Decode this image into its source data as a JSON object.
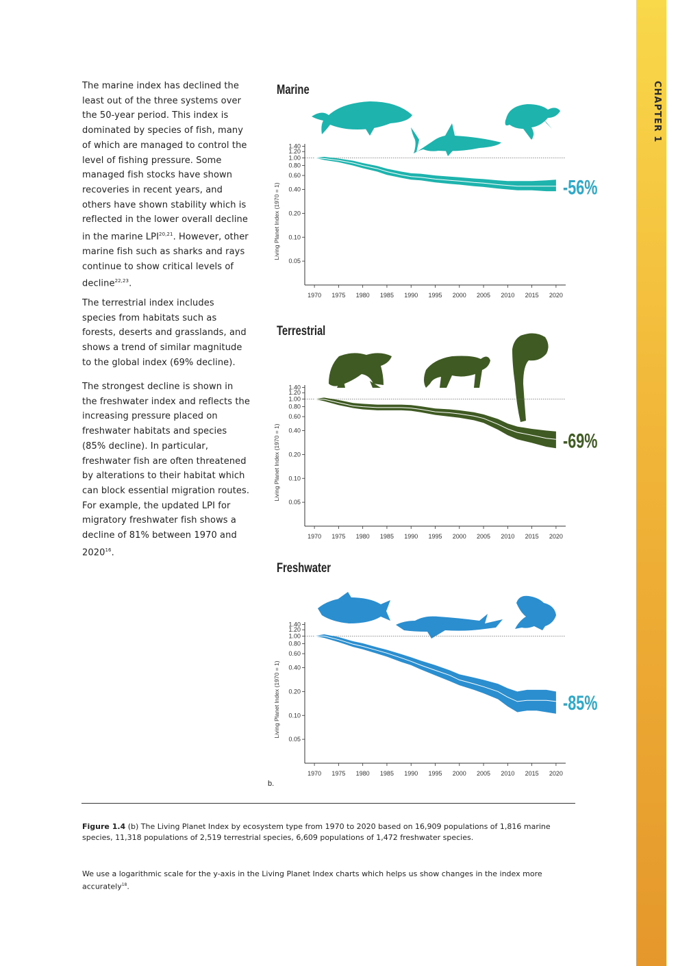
{
  "sidebar": {
    "chapter_label": "CHAPTER 1",
    "accent": "#f2b93a"
  },
  "text": {
    "marine_paragraph": {
      "part1": "The marine index has declined the least out of the three systems over the 50-year period. This index is dominated by species of fish, many of which are managed to control the level of fishing pressure. Some managed fish stocks have shown recoveries in recent years, and others have shown stability which is reflected in the lower overall decline in the marine LPI",
      "ref1": "20,21",
      "part2": ". However, other marine fish such as sharks and rays continue to show critical levels of decline",
      "ref2": "22,23",
      "part3": "."
    },
    "terrestrial_paragraph": "The terrestrial index includes species from habitats such as forests, deserts and grasslands, and shows a trend of similar magnitude to the global index (69% decline).",
    "freshwater_paragraph": {
      "part1": "The strongest decline is shown in the freshwater index and reflects the increasing pressure placed on freshwater habitats and species (85% decline). In particular, freshwater fish are often threatened by alterations to their habitat which can block essential migration routes. For example, the updated LPI for migratory freshwater fish shows a decline of 81% between 1970 and 2020",
      "ref": "16",
      "part2": "."
    }
  },
  "figure_label": "b.",
  "caption": {
    "label": "Figure 1.4",
    "text": " (b) The Living Planet Index by ecosystem type from 1970 to 2020 based on 16,909 populations of 1,816 marine species, 11,318 populations of 2,519 terrestrial species, 6,609 populations of 1,472 freshwater species."
  },
  "footnote": {
    "text": "We use a logarithmic scale for the y-axis in the Living Planet Index charts which helps us show changes in the index more accurately",
    "ref": "18",
    "end": "."
  },
  "chart_data": [
    {
      "type": "area",
      "title": "Marine",
      "ylabel": "Living Planet Index (1970 = 1)",
      "xlabel": "",
      "y_scale": "log",
      "ylim": [
        0.025,
        1.5
      ],
      "xlim": [
        1968,
        2022
      ],
      "color": "#1fb3ae",
      "x_ticks": [
        "1970",
        "1975",
        "1980",
        "1985",
        "1990",
        "1995",
        "2000",
        "2005",
        "2010",
        "2015",
        "2020"
      ],
      "y_ticks": [
        "1.40",
        "1.20",
        "1.00",
        "0.80",
        "0.60",
        "0.40",
        "0.20",
        "0.10",
        "0.05"
      ],
      "reference_line": 1.0,
      "change_label": "-56%",
      "animal_icons": [
        "whale-icon",
        "shark-icon",
        "turtle-icon"
      ],
      "series": [
        {
          "x": [
            1970,
            1972,
            1975,
            1978,
            1980,
            1983,
            1985,
            1988,
            1990,
            1992,
            1995,
            1998,
            2000,
            2003,
            2005,
            2008,
            2010,
            2012,
            2015,
            2018,
            2020
          ],
          "y": [
            1.0,
            0.98,
            0.93,
            0.86,
            0.8,
            0.73,
            0.67,
            0.61,
            0.58,
            0.57,
            0.54,
            0.52,
            0.51,
            0.49,
            0.48,
            0.46,
            0.45,
            0.44,
            0.44,
            0.44,
            0.44
          ],
          "lower": [
            1.0,
            0.94,
            0.88,
            0.8,
            0.74,
            0.67,
            0.61,
            0.56,
            0.53,
            0.52,
            0.49,
            0.47,
            0.46,
            0.44,
            0.43,
            0.41,
            0.4,
            0.39,
            0.39,
            0.38,
            0.38
          ],
          "upper": [
            1.0,
            1.03,
            0.98,
            0.92,
            0.86,
            0.79,
            0.73,
            0.67,
            0.64,
            0.63,
            0.6,
            0.58,
            0.57,
            0.55,
            0.54,
            0.52,
            0.51,
            0.51,
            0.51,
            0.52,
            0.53
          ]
        }
      ]
    },
    {
      "type": "area",
      "title": "Terrestrial",
      "ylabel": "Living Planet Index (1970 = 1)",
      "xlabel": "",
      "y_scale": "log",
      "ylim": [
        0.025,
        1.5
      ],
      "xlim": [
        1968,
        2022
      ],
      "color": "#3f5a22",
      "x_ticks": [
        "1970",
        "1975",
        "1980",
        "1985",
        "1990",
        "1995",
        "2000",
        "2005",
        "2010",
        "2015",
        "2020"
      ],
      "y_ticks": [
        "1.40",
        "1.20",
        "1.00",
        "0.80",
        "0.60",
        "0.40",
        "0.20",
        "0.10",
        "0.05"
      ],
      "reference_line": 1.0,
      "change_label": "-69%",
      "animal_icons": [
        "iguana-icon",
        "jaguar-icon",
        "monkey-icon"
      ],
      "series": [
        {
          "x": [
            1970,
            1972,
            1975,
            1978,
            1980,
            1983,
            1985,
            1988,
            1990,
            1992,
            1995,
            1998,
            2000,
            2003,
            2005,
            2008,
            2010,
            2012,
            2015,
            2018,
            2020
          ],
          "y": [
            1.0,
            0.99,
            0.9,
            0.82,
            0.8,
            0.78,
            0.78,
            0.78,
            0.77,
            0.74,
            0.69,
            0.67,
            0.65,
            0.61,
            0.57,
            0.48,
            0.42,
            0.38,
            0.35,
            0.32,
            0.31
          ],
          "lower": [
            1.0,
            0.94,
            0.84,
            0.77,
            0.74,
            0.72,
            0.72,
            0.72,
            0.71,
            0.68,
            0.63,
            0.6,
            0.58,
            0.54,
            0.5,
            0.41,
            0.35,
            0.31,
            0.28,
            0.25,
            0.24
          ],
          "upper": [
            1.0,
            1.04,
            0.97,
            0.89,
            0.87,
            0.85,
            0.85,
            0.85,
            0.84,
            0.81,
            0.76,
            0.74,
            0.72,
            0.68,
            0.64,
            0.56,
            0.49,
            0.45,
            0.42,
            0.4,
            0.39
          ]
        }
      ]
    },
    {
      "type": "area",
      "title": "Freshwater",
      "ylabel": "Living Planet Index (1970 = 1)",
      "xlabel": "",
      "y_scale": "log",
      "ylim": [
        0.025,
        1.5
      ],
      "xlim": [
        1968,
        2022
      ],
      "color": "#2b8ecf",
      "x_ticks": [
        "1970",
        "1975",
        "1980",
        "1985",
        "1990",
        "1995",
        "2000",
        "2005",
        "2010",
        "2015",
        "2020"
      ],
      "y_ticks": [
        "1.40",
        "1.20",
        "1.00",
        "0.80",
        "0.60",
        "0.40",
        "0.20",
        "0.10",
        "0.05"
      ],
      "reference_line": 1.0,
      "change_label": "-85%",
      "animal_icons": [
        "salmon-icon",
        "sturgeon-icon",
        "frog-icon"
      ],
      "series": [
        {
          "x": [
            1970,
            1972,
            1975,
            1978,
            1980,
            1983,
            1985,
            1988,
            1990,
            1992,
            1995,
            1998,
            2000,
            2003,
            2005,
            2008,
            2010,
            2012,
            2014,
            2016,
            2018,
            2020
          ],
          "y": [
            1.0,
            1.0,
            0.9,
            0.79,
            0.74,
            0.66,
            0.61,
            0.53,
            0.48,
            0.43,
            0.37,
            0.32,
            0.28,
            0.25,
            0.23,
            0.2,
            0.17,
            0.15,
            0.155,
            0.155,
            0.155,
            0.15
          ],
          "lower": [
            1.0,
            0.95,
            0.84,
            0.73,
            0.68,
            0.6,
            0.55,
            0.47,
            0.43,
            0.38,
            0.32,
            0.27,
            0.24,
            0.21,
            0.19,
            0.16,
            0.13,
            0.11,
            0.115,
            0.115,
            0.11,
            0.105
          ],
          "upper": [
            1.0,
            1.05,
            0.97,
            0.86,
            0.81,
            0.72,
            0.67,
            0.59,
            0.54,
            0.49,
            0.43,
            0.37,
            0.33,
            0.3,
            0.28,
            0.25,
            0.22,
            0.2,
            0.21,
            0.21,
            0.21,
            0.2
          ]
        }
      ]
    }
  ]
}
